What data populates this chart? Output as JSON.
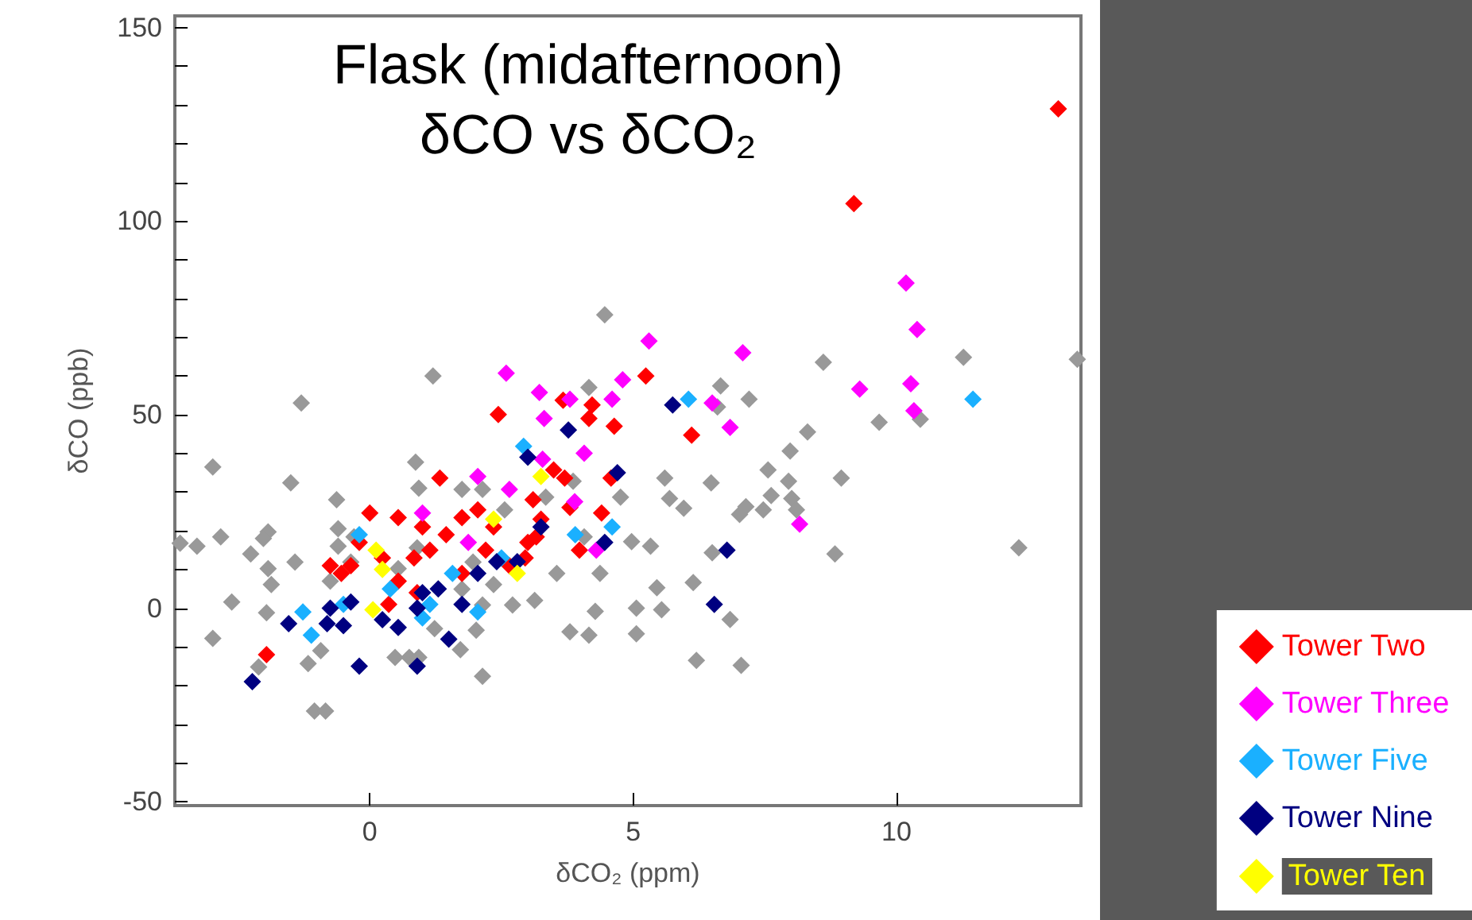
{
  "chart_data": {
    "type": "scatter",
    "title": "Flask (midafternoon)\nδCO vs δCO₂",
    "xlabel": "δCO₂ (ppm)",
    "ylabel": "δCO (ppb)",
    "xlim": [
      -3.7,
      13.5
    ],
    "xticks": [
      0,
      5,
      10
    ],
    "ylim": [
      -51,
      153
    ],
    "yticks": [
      -50,
      {
        "value": -40,
        "label": null
      },
      {
        "value": -30,
        "label": null
      },
      {
        "value": -20,
        "label": null
      },
      {
        "value": -10,
        "label": null
      },
      0,
      {
        "value": 10,
        "label": null
      },
      {
        "value": 20,
        "label": null
      },
      {
        "value": 30,
        "label": null
      },
      {
        "value": 40,
        "label": null
      },
      50,
      {
        "value": 60,
        "label": null
      },
      {
        "value": 70,
        "label": null
      },
      {
        "value": 80,
        "label": null
      },
      {
        "value": 90,
        "label": null
      },
      100,
      {
        "value": 110,
        "label": null
      },
      {
        "value": 120,
        "label": null
      },
      {
        "value": 130,
        "label": null
      },
      {
        "value": 140,
        "label": null
      },
      150
    ],
    "grid": false,
    "legend": "bottom right",
    "marker": "diamond",
    "series": [
      {
        "color": "#999999",
        "x": [
          8.95,
          8.83,
          8.61,
          11.27,
          10.45,
          9.67,
          8.31,
          7.98,
          7.56,
          7.95,
          7.62,
          8.01,
          8.1,
          7.47,
          7.14,
          7.02,
          6.66,
          6.6,
          7.2,
          6.14,
          5.45,
          6.2,
          7.05,
          6.84,
          5.54,
          5.06,
          5.06,
          4.28,
          4.16,
          3.8,
          2.14,
          5.33,
          5.96,
          5.69,
          5.6,
          6.48,
          6.5,
          12.32,
          13.43,
          4.46,
          1.2,
          -1.3,
          -2.98,
          -1.5,
          -0.63,
          0.87,
          0.93,
          -2.83,
          -3.28,
          -3.6,
          -1.93,
          -2.02,
          -2.26,
          -1.42,
          -1.93,
          -1.87,
          -2.62,
          -1.96,
          -2.98,
          -2.11,
          -0.93,
          -1.17,
          -1.05,
          -0.84,
          0.48,
          0.75,
          0.93,
          1.72,
          1.23,
          2.02,
          0.9,
          -0.6,
          -0.6,
          -0.3,
          3.13,
          2.71,
          1.75,
          2.14,
          2.56,
          3.34,
          3.55,
          4.37,
          4.07,
          4.97,
          4.76,
          4.16,
          3.86,
          2.14,
          1.75,
          2.35,
          0.54,
          -0.36,
          -0.75,
          1.96
        ],
        "values": [
          33.6,
          14,
          63.5,
          64.8,
          48.8,
          48,
          45.5,
          40.6,
          35.7,
          32.8,
          29.1,
          28.3,
          25.4,
          25.4,
          26.2,
          24.2,
          57.4,
          52,
          54,
          6.6,
          5.3,
          -13.5,
          -14.8,
          -2.9,
          -0.4,
          0,
          -6.6,
          -0.8,
          -7,
          -6.1,
          -17.6,
          16,
          25.8,
          28.3,
          33.6,
          32.4,
          14.3,
          15.6,
          64.3,
          75.8,
          60,
          53,
          36.5,
          32.4,
          28,
          37.7,
          31,
          18.4,
          16,
          16.8,
          19.7,
          18,
          14,
          11.9,
          10.2,
          6.1,
          1.6,
          -1.2,
          -7.8,
          -15.2,
          -11,
          -14.3,
          -26.6,
          -26.6,
          -12.7,
          -12.7,
          -12.7,
          -10.7,
          -5.3,
          -5.7,
          15.6,
          20.5,
          16,
          18.4,
          2,
          0.8,
          30.7,
          30.7,
          25.4,
          28.7,
          9,
          9,
          18.4,
          17.2,
          28.7,
          57,
          32.8,
          0.8,
          4.9,
          6.1,
          10.2,
          11.9,
          7,
          11.9
        ]
      },
      {
        "name": "Tower Two",
        "color": "#ff0000",
        "x": [
          13.07,
          9.19,
          5.24,
          6.11,
          3.67,
          4.22,
          4.16,
          4.64,
          2.44,
          4.58,
          3.49,
          3.8,
          4.4,
          3.1,
          3.25,
          3.7,
          3.98,
          0,
          0.54,
          1.33,
          1.0,
          1.75,
          2.05,
          2.35,
          1.45,
          1.14,
          0.24,
          -0.36,
          -0.75,
          0.54,
          0.9,
          0.36,
          2.95,
          2.65,
          3.16,
          -0.2,
          0.84,
          -1.96,
          -0.54,
          1.75,
          2.2,
          3.0
        ],
        "values": [
          129,
          104.5,
          60,
          44.7,
          53.7,
          52.5,
          49,
          47,
          50,
          33.6,
          35.7,
          26,
          24.6,
          28,
          23,
          33.6,
          15,
          24.6,
          23.4,
          33.6,
          21,
          23.4,
          25.4,
          21,
          19,
          15,
          13,
          11,
          11,
          7,
          4,
          1,
          13,
          11,
          18.4,
          17,
          13,
          -12,
          9,
          9,
          15,
          17
        ]
      },
      {
        "name": "Tower Three",
        "color": "#ff00ff",
        "x": [
          10.18,
          10.39,
          10.27,
          10.33,
          9.3,
          7.08,
          5.3,
          2.59,
          3.22,
          3.31,
          3.8,
          4.6,
          4.8,
          6.84,
          6.5,
          8.16,
          2.05,
          3.28,
          4.07,
          3.89,
          2.65,
          1.87,
          1.0,
          4.3
        ],
        "values": [
          84,
          72,
          58,
          51,
          56.6,
          66,
          69,
          60.7,
          55.7,
          49,
          54,
          54,
          59,
          46.7,
          53,
          21.7,
          34,
          38.5,
          40,
          27.5,
          30.7,
          17,
          24.6,
          15
        ]
      },
      {
        "name": "Tower Five",
        "color": "#1ab0ff",
        "x": [
          11.45,
          6.05,
          2.92,
          3.9,
          4.6,
          -0.2,
          -1.27,
          -1.11,
          -0.5,
          1.14,
          0.39,
          1.57,
          2.05,
          1.0,
          2.5
        ],
        "values": [
          54,
          54,
          41.8,
          19,
          21,
          19,
          -1,
          -7,
          1,
          1,
          5,
          9,
          -1,
          -2.5,
          13
        ]
      },
      {
        "name": "Tower Nine",
        "color": "#000080",
        "x": [
          -2.23,
          -0.2,
          0.9,
          -1.54,
          -0.75,
          -0.81,
          0.24,
          0.54,
          -0.5,
          1.5,
          0.9,
          1.75,
          1.0,
          5.75,
          6.78,
          6.54,
          3.0,
          3.77,
          4.7,
          2.41,
          2.8,
          3.25,
          4.46,
          2.05,
          -0.36,
          1.3
        ],
        "values": [
          -19,
          -15,
          -15,
          -4,
          0,
          -4,
          -3,
          -5,
          -4.5,
          -8,
          0,
          1,
          4,
          52.5,
          15,
          1,
          39,
          46,
          35,
          12,
          12,
          21,
          17,
          9,
          1.6,
          5
        ]
      },
      {
        "name": "Tower Ten",
        "color": "#ffff00",
        "x": [
          0.06,
          0.24,
          0.12,
          2.8,
          3.25,
          2.35
        ],
        "values": [
          -0.4,
          10,
          15,
          9,
          34,
          23
        ]
      }
    ]
  }
}
